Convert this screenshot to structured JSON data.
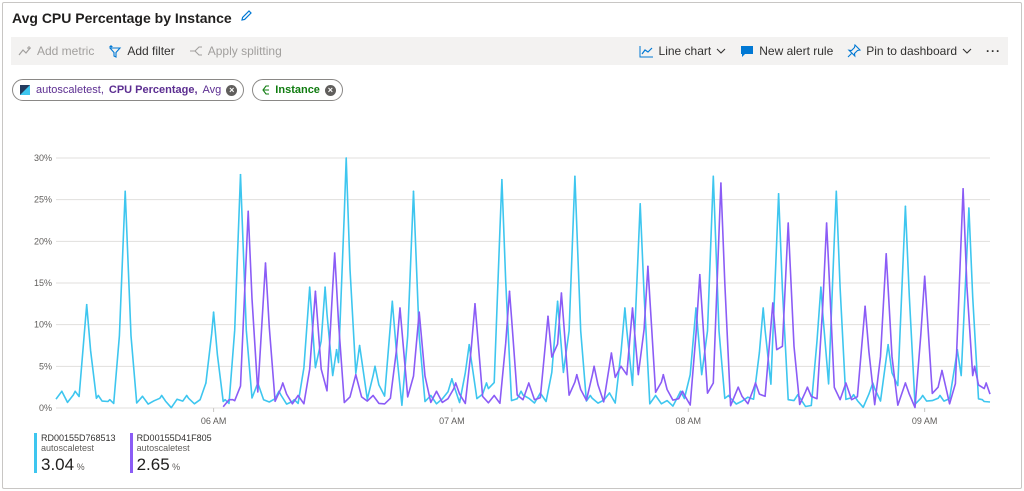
{
  "title": "Avg CPU Percentage by Instance",
  "toolbar": {
    "add_metric": "Add metric",
    "add_filter": "Add filter",
    "apply_splitting": "Apply splitting",
    "line_chart": "Line chart",
    "new_alert_rule": "New alert rule",
    "pin_to_dashboard": "Pin to dashboard",
    "more": "···"
  },
  "pills": {
    "resource": "autoscaletest,",
    "metric": "CPU Percentage,",
    "aggregation": "Avg",
    "split": "Instance"
  },
  "colors": {
    "series1": "#3ec6ef",
    "series2": "#8b5cf6",
    "accent": "#0078d4"
  },
  "chart_data": {
    "type": "line",
    "y_ticks": [
      "30%",
      "25%",
      "20%",
      "15%",
      "10%",
      "5%",
      "0%"
    ],
    "ylim": [
      0,
      30
    ],
    "x_ticks": [
      "06 AM",
      "07 AM",
      "08 AM",
      "09 AM"
    ],
    "grid": true,
    "series": [
      {
        "name": "RD00155D768513",
        "color": "#3ec6ef",
        "peaks": [
          [
            0.3,
            2
          ],
          [
            1.0,
            2
          ],
          [
            1.6,
            12.4
          ],
          [
            2.2,
            1.5
          ],
          [
            2.8,
            1
          ],
          [
            3.6,
            26
          ],
          [
            4.5,
            1.4
          ],
          [
            5.5,
            1.5
          ],
          [
            6.8,
            1.5
          ],
          [
            7.8,
            3
          ],
          [
            8.2,
            11.5
          ],
          [
            8.8,
            1
          ],
          [
            9.6,
            28
          ],
          [
            10.5,
            3
          ],
          [
            11.6,
            2
          ],
          [
            12.4,
            1
          ],
          [
            13.2,
            14.5
          ],
          [
            14.0,
            14.5
          ],
          [
            14.6,
            7
          ],
          [
            15.1,
            30
          ],
          [
            15.8,
            7.5
          ],
          [
            16.6,
            5
          ],
          [
            17.5,
            12.8
          ],
          [
            18.6,
            26
          ],
          [
            19.5,
            1.5
          ],
          [
            20.6,
            3.5
          ],
          [
            21.5,
            7.6
          ],
          [
            22.4,
            3
          ],
          [
            23.2,
            27.4
          ],
          [
            24.2,
            2
          ],
          [
            25.2,
            1.8
          ],
          [
            26.1,
            12.8
          ],
          [
            27.0,
            27.8
          ],
          [
            27.8,
            1.5
          ],
          [
            28.8,
            1.8
          ],
          [
            29.6,
            12
          ],
          [
            30.4,
            24.5
          ],
          [
            31.2,
            1.5
          ],
          [
            32.5,
            2
          ],
          [
            33.3,
            12
          ],
          [
            34.2,
            27.8
          ],
          [
            35.0,
            1.5
          ],
          [
            36.0,
            1.3
          ],
          [
            36.8,
            12
          ],
          [
            37.6,
            25.7
          ],
          [
            38.6,
            1.6
          ],
          [
            39.8,
            14.5
          ],
          [
            40.6,
            26
          ],
          [
            41.5,
            1.6
          ],
          [
            42.5,
            3
          ],
          [
            43.3,
            7.6
          ],
          [
            44.2,
            24.2
          ],
          [
            45.1,
            1.5
          ],
          [
            46.0,
            1.5
          ],
          [
            46.9,
            7
          ],
          [
            47.5,
            24
          ],
          [
            48.2,
            1
          ]
        ]
      },
      {
        "name": "RD00155D41F805",
        "color": "#8b5cf6",
        "peaks": [
          [
            9.2,
            1
          ],
          [
            10.0,
            23.6
          ],
          [
            10.9,
            17.4
          ],
          [
            11.8,
            3
          ],
          [
            12.6,
            1.5
          ],
          [
            13.5,
            14
          ],
          [
            14.5,
            18.6
          ],
          [
            15.6,
            4
          ],
          [
            16.5,
            1.5
          ],
          [
            17.9,
            12
          ],
          [
            18.9,
            11.5
          ],
          [
            19.8,
            2
          ],
          [
            20.8,
            3
          ],
          [
            21.8,
            12.5
          ],
          [
            22.8,
            1.5
          ],
          [
            23.6,
            14
          ],
          [
            24.6,
            3
          ],
          [
            25.6,
            11
          ],
          [
            26.3,
            13.8
          ],
          [
            27.1,
            4
          ],
          [
            28.0,
            5
          ],
          [
            28.9,
            6.6
          ],
          [
            29.4,
            5
          ],
          [
            30.0,
            12
          ],
          [
            30.8,
            17
          ],
          [
            31.6,
            4
          ],
          [
            32.6,
            2
          ],
          [
            33.5,
            16
          ],
          [
            34.6,
            27
          ],
          [
            35.5,
            2.5
          ],
          [
            36.4,
            3
          ],
          [
            37.3,
            12.6
          ],
          [
            38.1,
            22.2
          ],
          [
            39.1,
            2.5
          ],
          [
            40.1,
            22.2
          ],
          [
            41.1,
            3
          ],
          [
            42.1,
            12.2
          ],
          [
            43.2,
            18.5
          ],
          [
            44.2,
            3
          ],
          [
            45.2,
            15.8
          ],
          [
            46.1,
            4.5
          ],
          [
            47.2,
            26.3
          ],
          [
            47.8,
            5
          ],
          [
            48.4,
            3
          ]
        ]
      }
    ]
  },
  "legend": [
    {
      "name": "RD00155D768513",
      "sub": "autoscaletest",
      "value": "3.04",
      "unit": "%",
      "color": "#3ec6ef"
    },
    {
      "name": "RD00155D41F805",
      "sub": "autoscaletest",
      "value": "2.65",
      "unit": "%",
      "color": "#8b5cf6"
    }
  ]
}
